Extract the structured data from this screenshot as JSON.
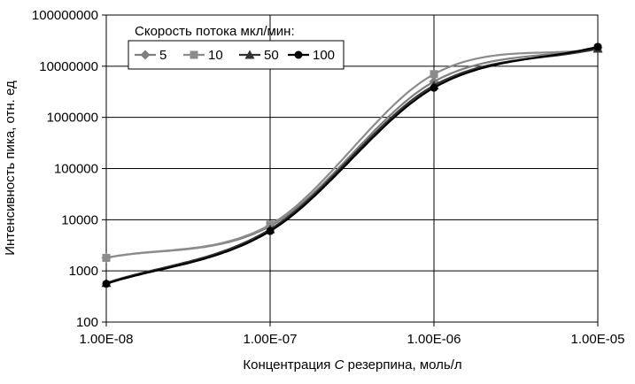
{
  "chart_data": {
    "type": "line",
    "xscale": "log",
    "yscale": "log",
    "xlabel_parts": [
      "Концентрация ",
      "C",
      " резерпина,  моль/л"
    ],
    "ylabel": "Интенсивность пика, отн. ед",
    "xlim": [
      1e-08,
      1e-05
    ],
    "ylim": [
      100,
      100000000
    ],
    "x_ticks": [
      1e-08,
      1e-07,
      1e-06,
      1e-05
    ],
    "x_tick_labels": [
      "1.00E-08",
      "1.00E-07",
      "1.00E-06",
      "1.00E-05"
    ],
    "y_ticks": [
      100,
      1000,
      10000,
      100000,
      1000000,
      10000000,
      100000000
    ],
    "y_tick_labels": [
      "100",
      "1000",
      "10000",
      "100000",
      "1000000",
      "10000000",
      "100000000"
    ],
    "grid": true,
    "legend": {
      "title": "Скорость потока мкл/мин:",
      "placement": "top-left"
    },
    "series": [
      {
        "name": "5",
        "color": "#7f7f7f",
        "marker": "diamond",
        "points": [
          [
            1e-08,
            1800
          ],
          [
            1e-07,
            7500
          ],
          [
            1e-06,
            5000000
          ],
          [
            1e-05,
            23000000
          ]
        ]
      },
      {
        "name": "10",
        "color": "#8c8c8c",
        "marker": "square",
        "points": [
          [
            1e-08,
            1800
          ],
          [
            1e-07,
            8000
          ],
          [
            1e-06,
            7000000
          ],
          [
            1e-05,
            22000000
          ]
        ]
      },
      {
        "name": "50",
        "color": "#333333",
        "marker": "triangle",
        "points": [
          [
            1e-08,
            580
          ],
          [
            1e-07,
            6500
          ],
          [
            1e-06,
            4200000
          ],
          [
            1e-05,
            22000000
          ]
        ]
      },
      {
        "name": "100",
        "color": "#000000",
        "marker": "circle",
        "points": [
          [
            1e-08,
            560
          ],
          [
            1e-07,
            6000
          ],
          [
            1e-06,
            3800000
          ],
          [
            1e-05,
            24000000
          ]
        ]
      }
    ]
  }
}
